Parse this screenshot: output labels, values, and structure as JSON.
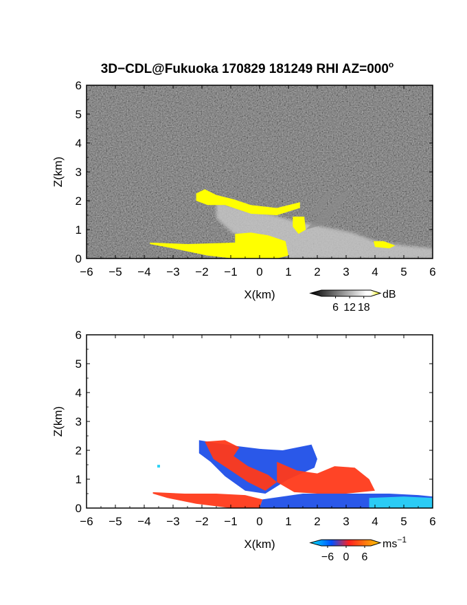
{
  "title": "3D−CDL@Fukuoka 170829 181249 RHI AZ=000",
  "title_superscript": "o",
  "chart_data": [
    {
      "type": "heatmap",
      "name": "reflectivity",
      "xlabel": "X(km)",
      "ylabel": "Z(km)",
      "xlim": [
        -6,
        6
      ],
      "ylim": [
        0,
        6
      ],
      "x_ticks": [
        "−6",
        "−5",
        "−4",
        "−3",
        "−2",
        "−1",
        "0",
        "1",
        "2",
        "3",
        "4",
        "5",
        "6"
      ],
      "y_ticks": [
        "0",
        "1",
        "2",
        "3",
        "4",
        "5",
        "6"
      ],
      "background": "noise",
      "colorbar": {
        "unit": "dB",
        "ticks": [
          "6",
          "12",
          "18"
        ],
        "tick_values": [
          6,
          12,
          18
        ],
        "range": [
          0,
          21
        ],
        "colors": [
          "#000000",
          "#ffffff",
          "#ffff00"
        ]
      },
      "features": [
        {
          "kind": "echo",
          "level": "high",
          "polygon": [
            [
              -2.2,
              2.25
            ],
            [
              -1.9,
              2.4
            ],
            [
              -1.5,
              2.2
            ],
            [
              -0.9,
              2.05
            ],
            [
              -0.3,
              1.85
            ],
            [
              0.6,
              1.75
            ],
            [
              1.4,
              1.95
            ],
            [
              1.4,
              1.75
            ],
            [
              0.6,
              1.5
            ],
            [
              -0.3,
              1.55
            ],
            [
              -1.2,
              1.85
            ],
            [
              -1.8,
              1.85
            ],
            [
              -2.2,
              2.0
            ]
          ]
        },
        {
          "kind": "echo",
          "level": "high",
          "polygon": [
            [
              1.15,
              1.45
            ],
            [
              1.55,
              1.45
            ],
            [
              1.6,
              1.0
            ],
            [
              1.35,
              0.85
            ],
            [
              1.15,
              1.1
            ]
          ]
        },
        {
          "kind": "echo",
          "level": "high",
          "polygon": [
            [
              -3.8,
              0.55
            ],
            [
              -2.5,
              0.5
            ],
            [
              -0.85,
              0.55
            ],
            [
              -0.85,
              0.85
            ],
            [
              -0.3,
              0.9
            ],
            [
              0.3,
              0.8
            ],
            [
              0.9,
              0.6
            ],
            [
              1.0,
              0.1
            ],
            [
              0.6,
              0.0
            ],
            [
              -0.9,
              0.0
            ],
            [
              -1.8,
              0.1
            ],
            [
              -3.0,
              0.35
            ],
            [
              -3.8,
              0.5
            ]
          ]
        },
        {
          "kind": "echo",
          "level": "high",
          "polygon": [
            [
              3.95,
              0.6
            ],
            [
              4.3,
              0.6
            ],
            [
              4.7,
              0.45
            ],
            [
              4.5,
              0.35
            ],
            [
              4.0,
              0.4
            ]
          ]
        },
        {
          "kind": "echo",
          "level": "mid",
          "polygon": [
            [
              -1.5,
              1.95
            ],
            [
              -0.5,
              1.7
            ],
            [
              0.5,
              1.5
            ],
            [
              1.2,
              1.3
            ],
            [
              2.2,
              1.1
            ],
            [
              3.2,
              0.9
            ],
            [
              4.0,
              0.6
            ],
            [
              5.0,
              0.45
            ],
            [
              6.0,
              0.35
            ],
            [
              6.0,
              0.0
            ],
            [
              1.0,
              0.0
            ],
            [
              0.6,
              0.4
            ],
            [
              -0.2,
              0.7
            ],
            [
              -0.9,
              0.85
            ],
            [
              -1.5,
              1.4
            ]
          ]
        },
        {
          "kind": "echo",
          "level": "streak",
          "polygon": [
            [
              1.6,
              1.0
            ],
            [
              2.9,
              2.3
            ],
            [
              3.2,
              2.35
            ],
            [
              2.3,
              1.2
            ]
          ]
        },
        {
          "kind": "echo",
          "level": "streak",
          "polygon": [
            [
              1.7,
              1.5
            ],
            [
              2.3,
              2.3
            ],
            [
              2.5,
              2.3
            ],
            [
              2.1,
              1.6
            ]
          ]
        }
      ]
    },
    {
      "type": "heatmap",
      "name": "doppler-velocity",
      "xlabel": "X(km)",
      "ylabel": "Z(km)",
      "xlim": [
        -6,
        6
      ],
      "ylim": [
        0,
        6
      ],
      "x_ticks": [
        "−6",
        "−5",
        "−4",
        "−3",
        "−2",
        "−1",
        "0",
        "1",
        "2",
        "3",
        "4",
        "5",
        "6"
      ],
      "y_ticks": [
        "0",
        "1",
        "2",
        "3",
        "4",
        "5",
        "6"
      ],
      "background": "none",
      "colorbar": {
        "unit": "ms",
        "unit_superscript": "−1",
        "ticks": [
          "−6",
          "0",
          "6"
        ],
        "tick_values": [
          -6,
          0,
          6
        ],
        "range": [
          -8,
          8
        ],
        "colors": [
          "#00e5ff",
          "#0050ff",
          "#ff2020",
          "#ffcc00"
        ]
      },
      "features": [
        {
          "kind": "velocity",
          "sign": "negative",
          "polygon": [
            [
              -2.1,
              2.35
            ],
            [
              -1.5,
              2.25
            ],
            [
              -0.8,
              2.15
            ],
            [
              0.0,
              2.05
            ],
            [
              0.8,
              2.0
            ],
            [
              1.8,
              2.2
            ],
            [
              2.0,
              1.7
            ],
            [
              1.9,
              1.4
            ],
            [
              1.0,
              1.0
            ],
            [
              0.2,
              0.5
            ],
            [
              -0.5,
              0.6
            ],
            [
              -1.2,
              1.1
            ],
            [
              -1.7,
              1.6
            ],
            [
              -2.1,
              1.9
            ]
          ]
        },
        {
          "kind": "velocity",
          "sign": "positive",
          "polygon": [
            [
              -1.9,
              2.3
            ],
            [
              -1.2,
              2.35
            ],
            [
              -0.7,
              2.1
            ],
            [
              -0.9,
              1.8
            ],
            [
              -0.4,
              1.45
            ],
            [
              0.3,
              1.15
            ],
            [
              0.6,
              0.9
            ],
            [
              0.2,
              0.6
            ],
            [
              -0.4,
              0.9
            ],
            [
              -1.0,
              1.3
            ],
            [
              -1.6,
              1.7
            ]
          ]
        },
        {
          "kind": "velocity",
          "sign": "positive",
          "polygon": [
            [
              0.6,
              1.6
            ],
            [
              1.3,
              1.3
            ],
            [
              2.0,
              1.2
            ],
            [
              2.6,
              1.45
            ],
            [
              3.3,
              1.4
            ],
            [
              3.8,
              1.0
            ],
            [
              4.0,
              0.6
            ],
            [
              3.0,
              0.5
            ],
            [
              2.0,
              0.5
            ],
            [
              1.2,
              0.55
            ],
            [
              0.6,
              0.9
            ]
          ]
        },
        {
          "kind": "velocity",
          "sign": "positive",
          "polygon": [
            [
              -3.7,
              0.55
            ],
            [
              -2.6,
              0.5
            ],
            [
              -1.5,
              0.5
            ],
            [
              -0.5,
              0.45
            ],
            [
              0.1,
              0.3
            ],
            [
              0.0,
              0.0
            ],
            [
              -1.0,
              0.0
            ],
            [
              -2.2,
              0.15
            ],
            [
              -3.2,
              0.35
            ],
            [
              -3.7,
              0.5
            ]
          ]
        },
        {
          "kind": "velocity",
          "sign": "negative",
          "polygon": [
            [
              0.1,
              0.3
            ],
            [
              1.5,
              0.5
            ],
            [
              3.0,
              0.5
            ],
            [
              4.5,
              0.5
            ],
            [
              5.5,
              0.45
            ],
            [
              6.0,
              0.4
            ],
            [
              6.0,
              0.0
            ],
            [
              0.0,
              0.0
            ]
          ]
        },
        {
          "kind": "velocity",
          "sign": "near-zero-negative",
          "polygon": [
            [
              3.8,
              0.35
            ],
            [
              5.0,
              0.4
            ],
            [
              6.0,
              0.35
            ],
            [
              6.0,
              0.0
            ],
            [
              3.8,
              0.0
            ]
          ]
        }
      ],
      "points": [
        {
          "x": -3.5,
          "y": 1.45,
          "value": -6
        }
      ]
    }
  ]
}
